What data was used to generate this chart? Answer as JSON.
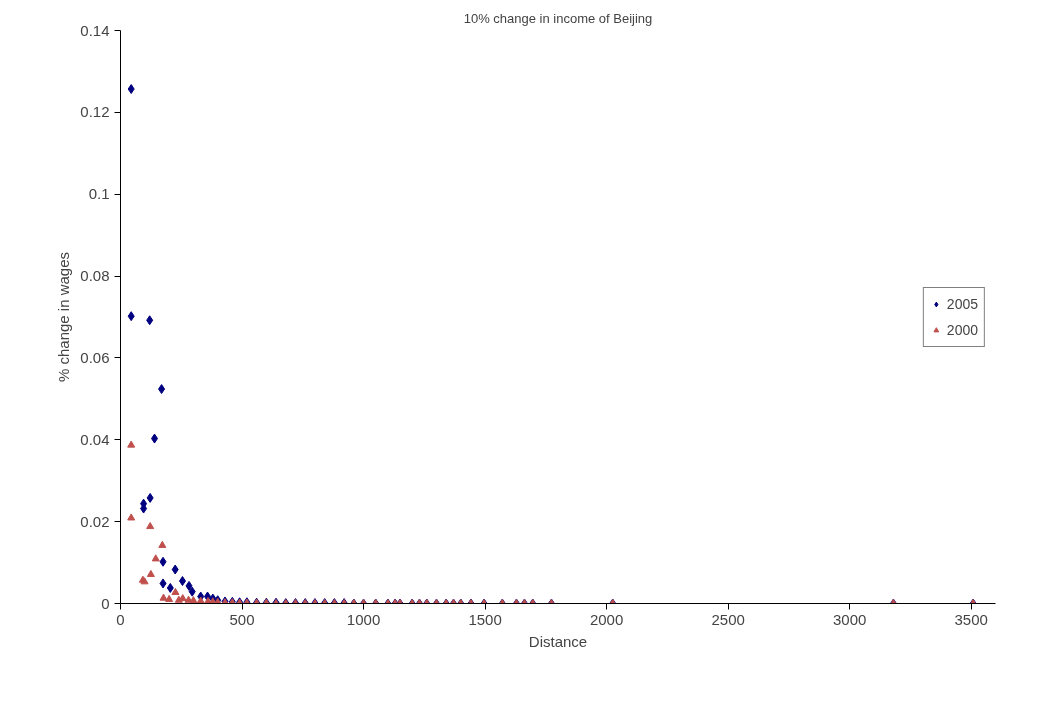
{
  "chart_data": {
    "type": "scatter",
    "title": "10% change in income of Beijing",
    "xlabel": "Distance",
    "ylabel": "% change in wages",
    "xlim": [
      0,
      3600
    ],
    "xticks": [
      0,
      500,
      1000,
      1500,
      2000,
      2500,
      3000,
      3500
    ],
    "ylim": [
      0,
      0.14
    ],
    "yticks": [
      0,
      0.02,
      0.04,
      0.06,
      0.08,
      0.1,
      0.12,
      0.14
    ],
    "grid": false,
    "legend": "right",
    "series": [
      {
        "name": "2005",
        "color": "#000080",
        "marker": "diamond",
        "x": [
          44,
          44,
          120,
          169,
          140,
          95,
          95,
          122,
          175,
          225,
          175,
          205,
          255,
          282,
          295,
          330,
          358,
          380,
          400,
          430,
          460,
          490,
          520,
          560,
          600,
          640,
          680,
          720,
          760,
          800,
          840,
          880,
          920,
          960,
          1000,
          1050,
          1100,
          1130,
          1150,
          1200,
          1230,
          1260,
          1300,
          1340,
          1370,
          1400,
          1442,
          1496,
          1571,
          1629,
          1662,
          1696,
          1773,
          2025,
          3180,
          3508
        ],
        "values": [
          0.1257,
          0.0702,
          0.0692,
          0.0524,
          0.0403,
          0.0244,
          0.0232,
          0.0258,
          0.0102,
          0.0083,
          0.0049,
          0.0038,
          0.0055,
          0.0043,
          0.0029,
          0.0017,
          0.0017,
          0.0012,
          0.0008,
          0.0005,
          0.0004,
          0.0003,
          0.0003,
          0.0002,
          0.0002,
          0.0002,
          0.0001,
          0.0001,
          0.0001,
          0.0001,
          0.0001,
          0.0001,
          0.0001,
          0,
          0,
          0,
          0,
          0,
          0,
          0,
          0,
          0,
          0,
          0,
          0,
          0,
          0,
          0,
          0,
          0,
          0,
          0,
          0,
          0,
          0,
          0
        ]
      },
      {
        "name": "2000",
        "color": "#c0504d",
        "marker": "triangle",
        "x": [
          44,
          44,
          92,
          99,
          122,
          125,
          145,
          172,
          177,
          226,
          256,
          200,
          240,
          280,
          300,
          330,
          360,
          380,
          400,
          430,
          460,
          490,
          520,
          560,
          600,
          640,
          680,
          720,
          760,
          800,
          840,
          880,
          920,
          960,
          1000,
          1050,
          1100,
          1130,
          1150,
          1200,
          1230,
          1260,
          1300,
          1340,
          1370,
          1400,
          1442,
          1496,
          1571,
          1629,
          1662,
          1696,
          1773,
          2025,
          3180,
          3508
        ],
        "values": [
          0.0387,
          0.0209,
          0.0057,
          0.0053,
          0.0188,
          0.0071,
          0.0109,
          0.0142,
          0.0013,
          0.0027,
          0.0012,
          0.001,
          0.0008,
          0.0008,
          0.0007,
          0.0006,
          0.0005,
          0.0004,
          0.0003,
          0.0002,
          0.0002,
          0.0001,
          0.0001,
          0.0001,
          0.0001,
          0,
          0,
          0,
          0,
          0,
          0,
          0,
          0,
          0,
          0,
          0,
          0,
          0,
          0,
          0,
          0,
          0,
          0,
          0,
          0,
          0,
          0,
          0,
          0,
          0,
          0,
          0,
          0,
          0,
          0,
          0
        ]
      }
    ]
  }
}
